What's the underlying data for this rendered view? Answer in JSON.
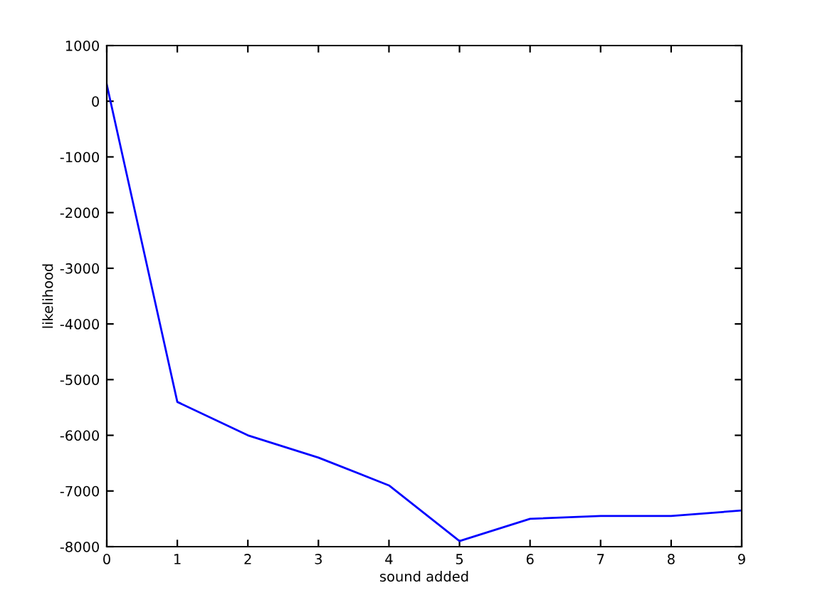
{
  "chart_data": {
    "type": "line",
    "xlabel": "sound added",
    "ylabel": "likelihood",
    "x": [
      0,
      1,
      2,
      3,
      4,
      5,
      6,
      7,
      8,
      9
    ],
    "series": [
      {
        "color": "#0000ff",
        "values": [
          300,
          -5400,
          -6000,
          -6400,
          -6900,
          -7900,
          -7500,
          -7450,
          -7450,
          -7350
        ]
      }
    ],
    "xlim": [
      0,
      9
    ],
    "xticks": [
      0,
      1,
      2,
      3,
      4,
      5,
      6,
      7,
      8,
      9
    ],
    "ylim": [
      -8000,
      1000
    ],
    "yticks": [
      -8000,
      -7000,
      -6000,
      -5000,
      -4000,
      -3000,
      -2000,
      -1000,
      0,
      1000
    ],
    "grid": false,
    "legend": false,
    "marker": "none",
    "line_style": "solid"
  }
}
